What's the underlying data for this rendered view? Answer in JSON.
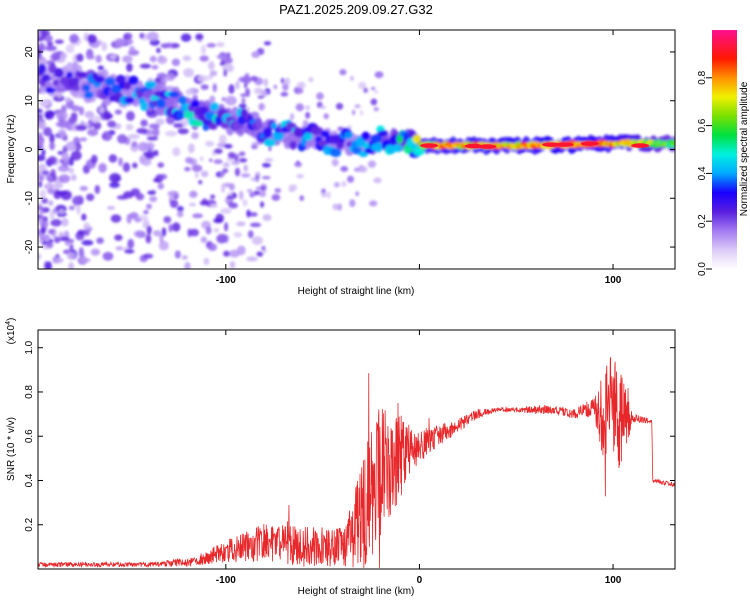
{
  "title": "PAZ1.2025.209.09.27.G32",
  "chart_data": [
    {
      "type": "heatmap",
      "xlabel": "Height of straight line (km)",
      "ylabel": "Frequency (Hz)",
      "xlim": [
        -197,
        132
      ],
      "ylim": [
        -24.5,
        24.5
      ],
      "x_ticks": [
        -100,
        0,
        100
      ],
      "x_tick_labels": [
        "-100",
        "",
        "100"
      ],
      "y_ticks": [
        -20,
        -10,
        0,
        10,
        20
      ],
      "colorbar": {
        "label": "Normalized spectral amplitude",
        "ticks": [
          0.0,
          0.2,
          0.4,
          0.6,
          0.8
        ],
        "tick_labels": [
          "0.0",
          "0.2",
          "0.4",
          "0.6",
          "0.8"
        ],
        "range": [
          0,
          1
        ],
        "colormap": "rainbow (white-violet-blue-cyan-green-yellow-red-magenta)"
      },
      "ridge": {
        "x": [
          -195,
          -170,
          -150,
          -130,
          -110,
          -90,
          -70,
          -50,
          -30,
          -15,
          -5,
          0,
          20,
          50,
          80,
          100,
          132
        ],
        "frequency": [
          15,
          13,
          12,
          10,
          7,
          5,
          3,
          2,
          1,
          2,
          2,
          0.8,
          0.8,
          0.8,
          1.0,
          1.3,
          1.2
        ],
        "amplitude": [
          0.3,
          0.4,
          0.45,
          0.5,
          0.55,
          0.5,
          0.5,
          0.45,
          0.45,
          0.6,
          0.7,
          0.8,
          0.85,
          0.85,
          0.9,
          0.85,
          0.6
        ]
      }
    },
    {
      "type": "line",
      "xlabel": "Height of straight line (km)",
      "ylabel": "SNR (10 * v/v)",
      "y_multiplier": "(x10",
      "y_multiplier_exp": "4",
      "y_multiplier_close": ")",
      "xlim": [
        -197,
        132
      ],
      "ylim": [
        0,
        1.08
      ],
      "x_ticks": [
        -100,
        0,
        100
      ],
      "x_tick_labels": [
        "-100",
        "0",
        "100"
      ],
      "y_ticks": [
        0.2,
        0.4,
        0.6,
        0.8,
        1.0
      ],
      "y_tick_labels": [
        "0.2",
        "0.4",
        "0.6",
        "0.8",
        "1.0"
      ],
      "series": [
        {
          "color": "#e8272a",
          "x": [
            -197,
            -140,
            -120,
            -110,
            -100,
            -90,
            -80,
            -70,
            -60,
            -50,
            -40,
            -35,
            -30,
            -25,
            -20,
            -15,
            -10,
            -5,
            0,
            10,
            20,
            30,
            40,
            50,
            60,
            70,
            80,
            85,
            90,
            95,
            100,
            105,
            110,
            120,
            120.5,
            132
          ],
          "y": [
            0.02,
            0.02,
            0.03,
            0.05,
            0.08,
            0.1,
            0.12,
            0.11,
            0.1,
            0.1,
            0.11,
            0.15,
            0.25,
            0.35,
            0.45,
            0.45,
            0.5,
            0.55,
            0.56,
            0.6,
            0.65,
            0.7,
            0.72,
            0.72,
            0.72,
            0.72,
            0.7,
            0.72,
            0.72,
            0.7,
            0.7,
            0.68,
            0.68,
            0.67,
            0.4,
            0.38
          ],
          "noise_amplitude": [
            0.01,
            0.01,
            0.02,
            0.03,
            0.05,
            0.07,
            0.09,
            0.09,
            0.09,
            0.09,
            0.1,
            0.15,
            0.25,
            0.3,
            0.3,
            0.25,
            0.2,
            0.12,
            0.08,
            0.05,
            0.03,
            0.02,
            0.01,
            0.01,
            0.02,
            0.02,
            0.02,
            0.03,
            0.05,
            0.2,
            0.3,
            0.2,
            0.02,
            0.01,
            0.01,
            0.01
          ]
        }
      ]
    }
  ]
}
